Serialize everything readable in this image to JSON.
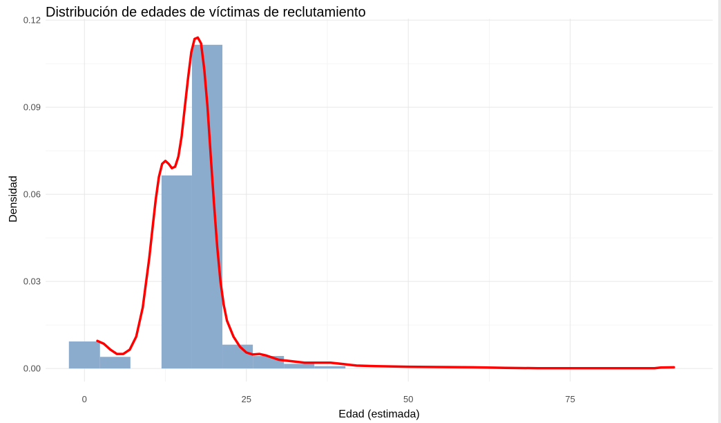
{
  "chart_data": {
    "type": "bar",
    "title": "Distribución de edades de víctimas de reclutamiento",
    "xlabel": "Edad (estimada)",
    "ylabel": "Densidad",
    "xlim": [
      -6,
      97
    ],
    "ylim": [
      -0.0045,
      0.1205
    ],
    "x_ticks": [
      0,
      25,
      50,
      75
    ],
    "x_tick_labels": [
      "0",
      "25",
      "50",
      "75"
    ],
    "y_ticks": [
      0,
      0.03,
      0.06,
      0.09,
      0.12
    ],
    "y_tick_labels": [
      "0.00",
      "0.03",
      "0.06",
      "0.09",
      "0.12"
    ],
    "grid": true,
    "bar_color": "#8cacce",
    "density_color": "#ff0000",
    "histogram": {
      "bin_edges": [
        -2.4,
        2.4,
        7.1,
        11.9,
        16.6,
        21.3,
        26.0,
        30.8,
        35.5,
        40.3
      ],
      "density": [
        0.0093,
        0.004,
        0.0,
        0.0665,
        0.1115,
        0.0082,
        0.0043,
        0.0016,
        0.0008
      ]
    },
    "density_curve": {
      "x": [
        2,
        3,
        4,
        5,
        6,
        7,
        8,
        9,
        10,
        10.5,
        11,
        11.5,
        12,
        12.5,
        13,
        13.5,
        14,
        14.5,
        15,
        15.5,
        16,
        16.5,
        17,
        17.5,
        18,
        18.5,
        19,
        19.5,
        20,
        20.5,
        21,
        21.5,
        22,
        23,
        24,
        25,
        26,
        27,
        28,
        30,
        32,
        34,
        36,
        38,
        40,
        42,
        45,
        50,
        55,
        60,
        65,
        70,
        75,
        80,
        85,
        88,
        89,
        91
      ],
      "y": [
        0.0095,
        0.0085,
        0.0065,
        0.005,
        0.005,
        0.0065,
        0.011,
        0.021,
        0.038,
        0.048,
        0.058,
        0.066,
        0.0705,
        0.0715,
        0.0705,
        0.069,
        0.0695,
        0.073,
        0.08,
        0.09,
        0.1,
        0.109,
        0.1135,
        0.114,
        0.112,
        0.103,
        0.09,
        0.073,
        0.057,
        0.042,
        0.03,
        0.022,
        0.0165,
        0.011,
        0.0075,
        0.0055,
        0.0048,
        0.005,
        0.0045,
        0.003,
        0.0025,
        0.002,
        0.002,
        0.002,
        0.0015,
        0.001,
        0.0008,
        0.0006,
        0.0005,
        0.0004,
        0.0002,
        0.0001,
        0.0001,
        0.0001,
        0.0001,
        0.0001,
        0.0003,
        0.0004
      ]
    }
  }
}
